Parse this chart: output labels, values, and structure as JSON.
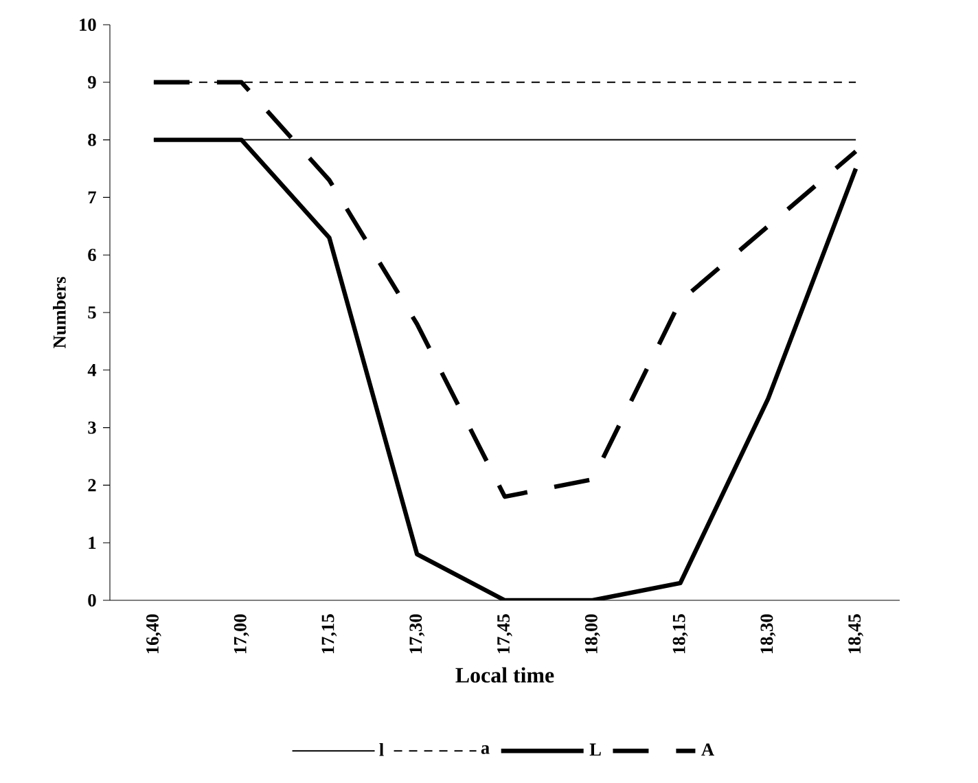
{
  "chart_data": {
    "type": "line",
    "xlabel": "Local time",
    "ylabel": "Numbers",
    "categories": [
      "16,40",
      "17,00",
      "17,15",
      "17,30",
      "17,45",
      "18,00",
      "18,15",
      "18,30",
      "18,45"
    ],
    "ylim": [
      0,
      10
    ],
    "yticks": [
      0,
      1,
      2,
      3,
      4,
      5,
      6,
      7,
      8,
      9,
      10
    ],
    "legend": "bottom",
    "marker": "none",
    "series": [
      {
        "name": "l",
        "color": "#000000",
        "line_style": "solid",
        "values": [
          8,
          8,
          8,
          8,
          8,
          8,
          8,
          8,
          8
        ]
      },
      {
        "name": "a",
        "color": "#000000",
        "line_style": "dashed",
        "values": [
          9,
          9,
          9,
          9,
          9,
          9,
          9,
          9,
          9
        ]
      },
      {
        "name": "L",
        "color": "#000000",
        "line_style": "solid",
        "values": [
          8,
          8,
          6.3,
          0.8,
          0,
          0,
          0.3,
          3.5,
          7.5
        ]
      },
      {
        "name": "A",
        "color": "#000000",
        "line_style": "dashed",
        "values": [
          9,
          9,
          7.3,
          4.8,
          1.8,
          2.1,
          5.2,
          6.5,
          7.8
        ]
      }
    ]
  }
}
